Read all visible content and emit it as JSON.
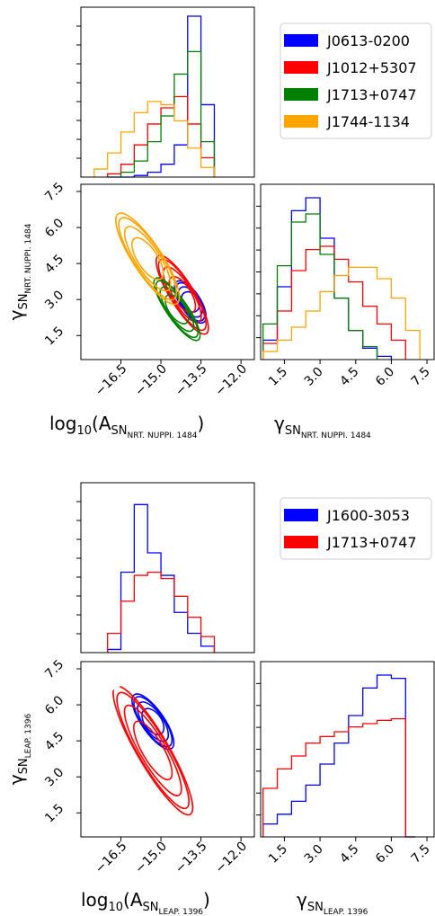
{
  "chart_data": [
    {
      "type": "corner",
      "x_param_label": "log10(A SN NRT.NUPPI.1484)",
      "y_param_label": "γ SN NRT.NUPPI.1484",
      "xlim_log10A": [
        -18,
        -11.5
      ],
      "xticks_log10A": [
        "−16.5",
        "−15.0",
        "−13.5",
        "−12.0"
      ],
      "xlim_gamma": [
        0.5,
        7.8
      ],
      "yticks_gamma": [
        "1.5",
        "3.0",
        "4.5",
        "6.0",
        "7.5"
      ],
      "legend": {
        "placement": "top-right",
        "entries": [
          "J0613-0200",
          "J1012+5307",
          "J1713+0747",
          "J1744-1134"
        ]
      },
      "series": [
        {
          "name": "J0613-0200",
          "color": "#0000ff",
          "hist_log10A": {
            "edges": [
              -17,
              -16.5,
              -16,
              -15.5,
              -15,
              -14.5,
              -14,
              -13.5,
              -13
            ],
            "counts": [
              0,
              0,
              0.01,
              0.03,
              0.08,
              0.2,
              1.0,
              0.45,
              0.08
            ]
          },
          "hist_gamma": {
            "edges": [
              0.6,
              1.2,
              1.8,
              2.4,
              3.0,
              3.6,
              4.2,
              4.8,
              5.4,
              6.0
            ],
            "counts": [
              0.12,
              0.45,
              0.92,
              1.0,
              0.75,
              0.38,
              0.18,
              0.07,
              0.02
            ]
          },
          "contour": {
            "center": [
              -13.9,
              2.9
            ],
            "slope": -1.7,
            "spread": [
              0.5,
              1.2
            ]
          }
        },
        {
          "name": "J1012+5307",
          "color": "#ff0000",
          "hist_log10A": {
            "edges": [
              -17,
              -16.5,
              -16,
              -15.5,
              -15,
              -14.5,
              -14,
              -13.5,
              -13
            ],
            "counts": [
              0.02,
              0.08,
              0.2,
              0.33,
              0.43,
              0.5,
              0.33,
              0.12,
              0.03
            ]
          },
          "hist_gamma": {
            "edges": [
              0.6,
              1.2,
              1.8,
              2.4,
              3.0,
              3.6,
              4.2,
              4.8,
              5.4,
              6.0,
              6.6
            ],
            "counts": [
              0.1,
              0.3,
              0.55,
              0.68,
              0.7,
              0.62,
              0.48,
              0.33,
              0.22,
              0.12,
              0.05
            ]
          },
          "contour": {
            "center": [
              -14.2,
              3.2
            ],
            "slope": -1.8,
            "spread": [
              0.9,
              1.8
            ]
          }
        },
        {
          "name": "J1713+0747",
          "color": "#008000",
          "hist_log10A": {
            "edges": [
              -16.5,
              -16,
              -15.5,
              -15,
              -14.5,
              -14,
              -13.5,
              -13
            ],
            "counts": [
              0.03,
              0.1,
              0.22,
              0.38,
              0.64,
              0.78,
              0.22,
              0.03
            ]
          },
          "hist_gamma": {
            "edges": [
              0.6,
              1.2,
              1.8,
              2.4,
              3.0,
              3.6,
              4.2,
              4.8,
              5.4
            ],
            "counts": [
              0.22,
              0.58,
              0.85,
              0.9,
              0.65,
              0.38,
              0.18,
              0.08,
              0.02
            ]
          },
          "contour": {
            "center": [
              -14.4,
              2.6
            ],
            "slope": -1.6,
            "spread": [
              0.8,
              1.3
            ]
          }
        },
        {
          "name": "J1744-1134",
          "color": "#ffa500",
          "hist_log10A": {
            "edges": [
              -17.5,
              -17,
              -16.5,
              -16,
              -15.5,
              -15,
              -14.5,
              -14,
              -13.5,
              -13
            ],
            "counts": [
              0.05,
              0.15,
              0.28,
              0.4,
              0.47,
              0.45,
              0.35,
              0.18,
              0.06,
              0.01
            ]
          },
          "hist_gamma": {
            "edges": [
              0.6,
              1.2,
              1.8,
              2.4,
              3.0,
              3.6,
              4.2,
              4.8,
              5.4,
              6.0,
              6.6,
              7.2
            ],
            "counts": [
              0.05,
              0.12,
              0.2,
              0.3,
              0.42,
              0.52,
              0.57,
              0.57,
              0.5,
              0.38,
              0.18,
              0.06
            ]
          },
          "contour": {
            "center": [
              -15.5,
              4.7
            ],
            "slope": -1.7,
            "spread": [
              1.1,
              2.6
            ]
          }
        }
      ]
    },
    {
      "type": "corner",
      "x_param_label": "log10(A SN LEAP.1396)",
      "y_param_label": "γ SN LEAP.1396",
      "xlim_log10A": [
        -18,
        -11.5
      ],
      "xticks_log10A": [
        "−16.5",
        "−15.0",
        "−13.5",
        "−12.0"
      ],
      "xlim_gamma": [
        0.5,
        7.8
      ],
      "yticks_gamma": [
        "1.5",
        "3.0",
        "4.5",
        "6.0",
        "7.5"
      ],
      "legend": {
        "placement": "top-right",
        "entries": [
          "J1600-3053",
          "J1713+0747"
        ]
      },
      "series": [
        {
          "name": "J1600-3053",
          "color": "#0000ff",
          "hist_log10A": {
            "edges": [
              -17,
              -16.5,
              -16,
              -15.5,
              -15,
              -14.5,
              -14,
              -13.5,
              -13
            ],
            "counts": [
              0.02,
              0.5,
              0.92,
              0.62,
              0.48,
              0.25,
              0.12,
              0.04,
              0.0
            ]
          },
          "hist_gamma": {
            "edges": [
              0.6,
              1.2,
              1.8,
              2.4,
              3.0,
              3.6,
              4.2,
              4.8,
              5.4,
              6.0,
              6.6,
              7.0
            ],
            "counts": [
              0.08,
              0.14,
              0.22,
              0.32,
              0.45,
              0.58,
              0.75,
              0.92,
              1.0,
              0.98,
              0.0
            ]
          },
          "contour": {
            "center": [
              -15.3,
              5.3
            ],
            "slope": -1.6,
            "spread": [
              0.7,
              1.6
            ]
          }
        },
        {
          "name": "J1713+0747",
          "color": "#ff0000",
          "hist_log10A": {
            "edges": [
              -17,
              -16.5,
              -16,
              -15.5,
              -15,
              -14.5,
              -14,
              -13.5,
              -13
            ],
            "counts": [
              0.12,
              0.32,
              0.48,
              0.5,
              0.46,
              0.35,
              0.22,
              0.1,
              0.02
            ]
          },
          "hist_gamma": {
            "edges": [
              0.6,
              1.2,
              1.8,
              2.4,
              3.0,
              3.6,
              4.2,
              4.8,
              5.4,
              6.0,
              6.6,
              7.0
            ],
            "counts": [
              0.3,
              0.42,
              0.5,
              0.58,
              0.62,
              0.65,
              0.68,
              0.7,
              0.72,
              0.73,
              0.0
            ]
          },
          "contour": {
            "center": [
              -15.3,
              4.1
            ],
            "slope": -1.9,
            "spread": [
              1.4,
              3.0
            ]
          }
        }
      ]
    }
  ]
}
